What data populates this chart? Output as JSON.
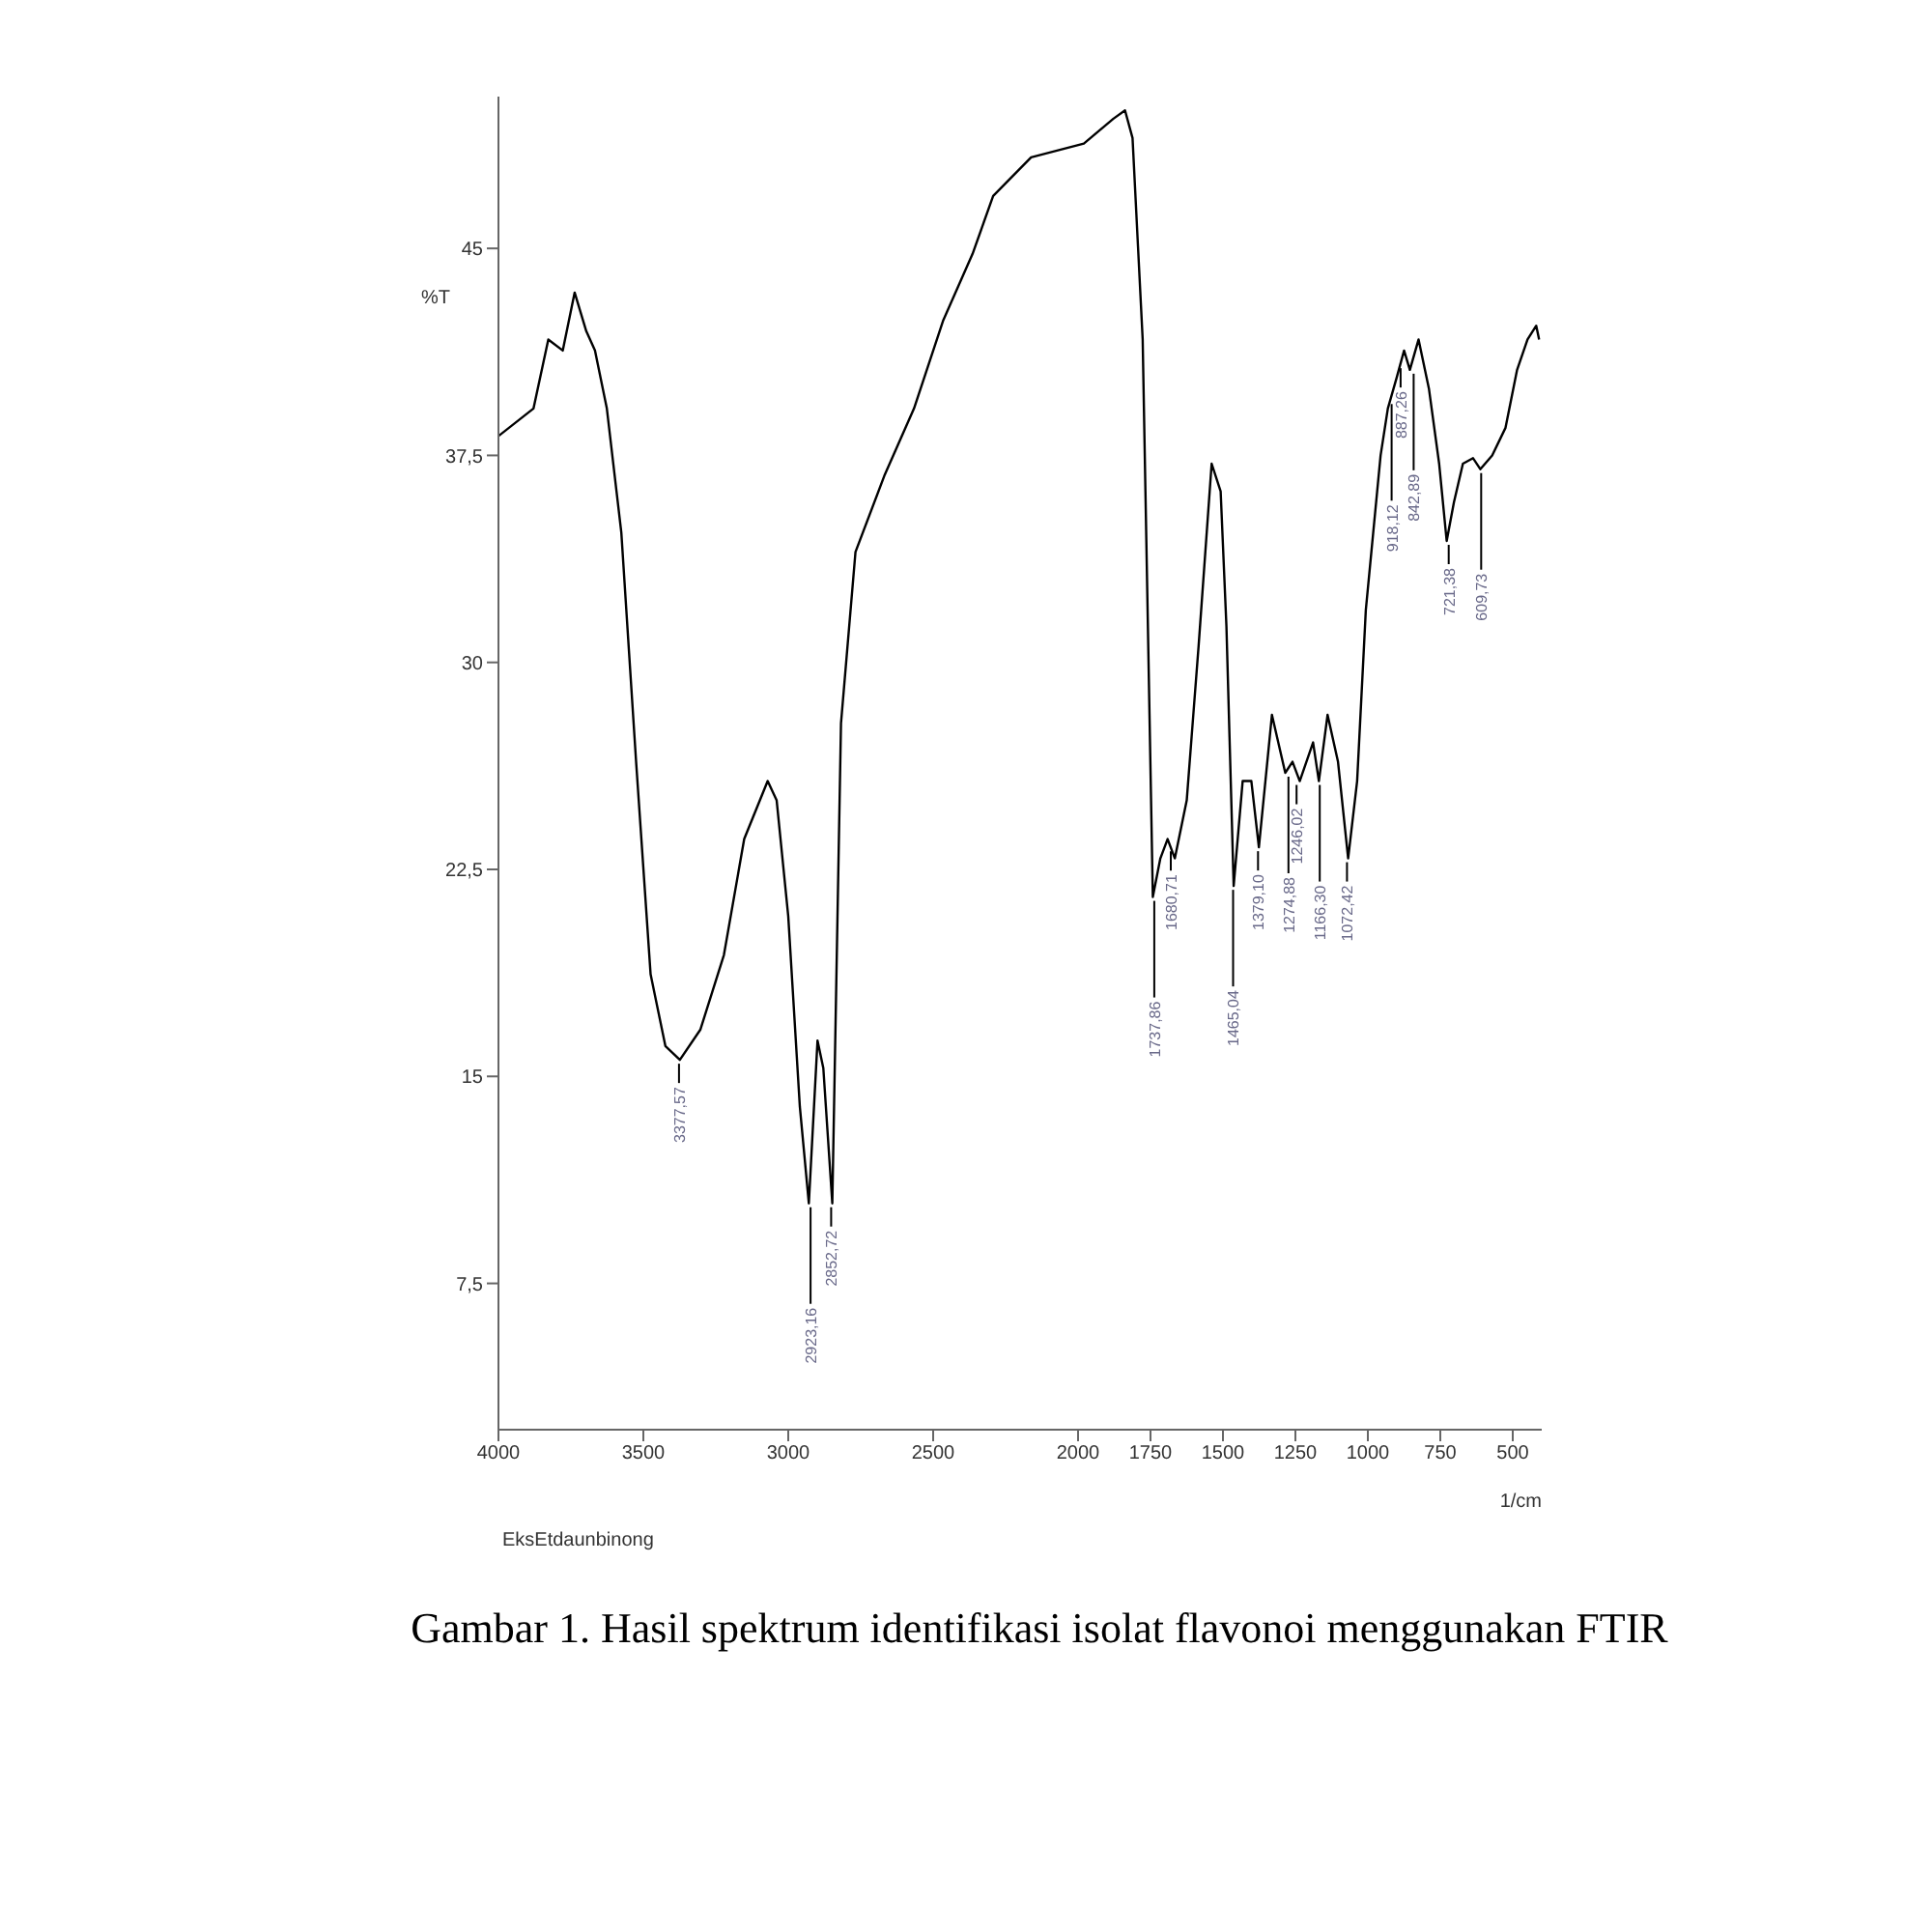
{
  "chart_data": {
    "type": "line",
    "title": "Gambar 1. Hasil spektrum identifikasi isolat flavonoi menggunakan FTIR",
    "xlabel": "1/cm",
    "ylabel": "%T",
    "x": [
      4000,
      3879,
      3828,
      3778,
      3737,
      3697,
      3667,
      3626,
      3576,
      3525,
      3475,
      3424,
      3374,
      3303,
      3222,
      3152,
      3071,
      3040,
      3000,
      2960,
      2929,
      2899,
      2879,
      2848,
      2818,
      2768,
      2667,
      2566,
      2465,
      2364,
      2293,
      2162,
      1980,
      1878,
      1838,
      1812,
      1777,
      1742,
      1716,
      1691,
      1666,
      1625,
      1584,
      1539,
      1508,
      1488,
      1463,
      1432,
      1402,
      1376,
      1331,
      1285,
      1260,
      1235,
      1189,
      1169,
      1139,
      1103,
      1068,
      1037,
      1007,
      956,
      931,
      901,
      875,
      855,
      825,
      789,
      754,
      728,
      703,
      672,
      637,
      612,
      571,
      525,
      485,
      449,
      419,
      409
    ],
    "series": [
      {
        "color": "#000000",
        "values": [
          38.2,
          39.2,
          41.7,
          41.3,
          43.4,
          42.0,
          41.3,
          39.2,
          34.7,
          26.4,
          18.7,
          16.1,
          15.6,
          16.7,
          19.4,
          23.6,
          25.7,
          25.0,
          20.8,
          13.9,
          10.4,
          16.3,
          15.3,
          10.4,
          27.8,
          34.0,
          36.8,
          39.2,
          42.4,
          44.8,
          46.9,
          48.3,
          48.8,
          49.7,
          50.0,
          49.0,
          41.7,
          21.5,
          22.9,
          23.6,
          22.9,
          25.0,
          30.6,
          37.2,
          36.2,
          31.3,
          21.9,
          25.7,
          25.7,
          23.3,
          28.1,
          26.0,
          26.4,
          25.7,
          27.1,
          25.7,
          28.1,
          26.4,
          22.9,
          25.7,
          31.9,
          37.5,
          39.2,
          40.3,
          41.3,
          40.6,
          41.7,
          39.9,
          37.2,
          34.4,
          35.8,
          37.2,
          37.4,
          37.0,
          37.5,
          38.5,
          40.6,
          41.7,
          42.2,
          41.7
        ]
      }
    ],
    "xlim": [
      4000,
      400
    ],
    "xticks": [
      4000,
      3500,
      3000,
      2500,
      2000,
      1750,
      1500,
      1250,
      1000,
      750,
      500
    ],
    "ylim": [
      2.2,
      50.5
    ],
    "yticks": [
      {
        "value": 7.5,
        "label": "7,5"
      },
      15,
      {
        "value": 22.5,
        "label": "22,5"
      },
      30,
      {
        "value": 37.5,
        "label": "37,5"
      },
      45
    ],
    "grid": false,
    "marker": "none",
    "line_style": "solid",
    "legend": false,
    "annotations": [
      "EksEtdaunbinong",
      {
        "text": "3377,57",
        "x": 3377,
        "y": 15.6
      },
      {
        "text": "2923,16",
        "x": 2923,
        "y": 10.4
      },
      {
        "text": "2852,72",
        "x": 2852,
        "y": 10.4
      },
      {
        "text": "1737,86",
        "x": 1737,
        "y": 21.5
      },
      {
        "text": "1680,71",
        "x": 1680,
        "y": 23.3
      },
      {
        "text": "1465,04",
        "x": 1465,
        "y": 21.9
      },
      {
        "text": "1379,10",
        "x": 1379,
        "y": 23.3
      },
      {
        "text": "1274,88",
        "x": 1274,
        "y": 26.0
      },
      {
        "text": "1246,02",
        "x": 1246,
        "y": 25.7
      },
      {
        "text": "1166,30",
        "x": 1166,
        "y": 25.7
      },
      {
        "text": "1072,42",
        "x": 1072,
        "y": 22.9
      },
      {
        "text": "918,12",
        "x": 918,
        "y": 39.5
      },
      {
        "text": "887,26",
        "x": 887,
        "y": 40.8
      },
      {
        "text": "842,89",
        "x": 842,
        "y": 40.6
      },
      {
        "text": "721,38",
        "x": 721,
        "y": 34.4
      },
      {
        "text": "609,73",
        "x": 609,
        "y": 37.0
      }
    ]
  }
}
